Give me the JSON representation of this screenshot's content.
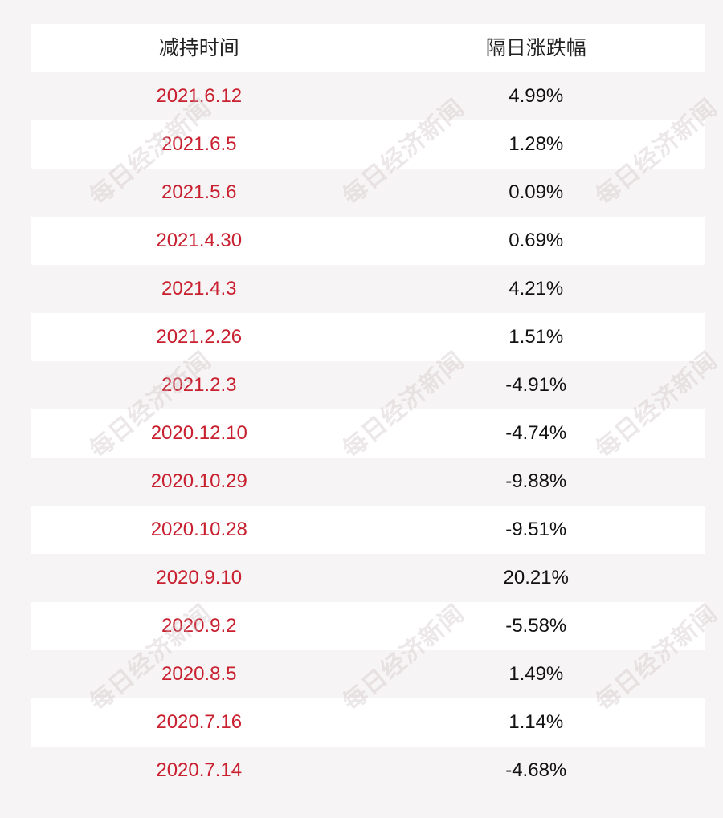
{
  "table": {
    "headers": {
      "date": "减持时间",
      "change": "隔日涨跌幅"
    },
    "rows": [
      {
        "date": "2021.6.12",
        "change": "4.99%"
      },
      {
        "date": "2021.6.5",
        "change": "1.28%"
      },
      {
        "date": "2021.5.6",
        "change": "0.09%"
      },
      {
        "date": "2021.4.30",
        "change": "0.69%"
      },
      {
        "date": "2021.4.3",
        "change": "4.21%"
      },
      {
        "date": "2021.2.26",
        "change": "1.51%"
      },
      {
        "date": "2021.2.3",
        "change": "-4.91%"
      },
      {
        "date": "2020.12.10",
        "change": "-4.74%"
      },
      {
        "date": "2020.10.29",
        "change": "-9.88%"
      },
      {
        "date": "2020.10.28",
        "change": "-9.51%"
      },
      {
        "date": "2020.9.10",
        "change": "20.21%"
      },
      {
        "date": "2020.9.2",
        "change": "-5.58%"
      },
      {
        "date": "2020.8.5",
        "change": "1.49%"
      },
      {
        "date": "2020.7.16",
        "change": "1.14%"
      },
      {
        "date": "2020.7.14",
        "change": "-4.68%"
      }
    ]
  },
  "watermark": {
    "text": "每日经济新闻"
  },
  "colors": {
    "date_text": "#c8202f",
    "value_text": "#111111",
    "row_white": "#ffffff",
    "row_tint": "#f7f4f5"
  }
}
